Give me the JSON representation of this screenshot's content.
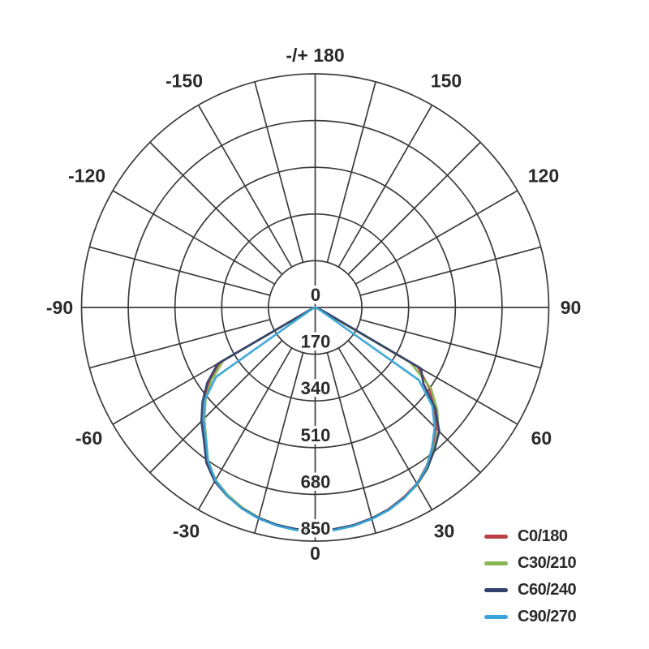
{
  "chart_data": {
    "type": "polar_line",
    "description": "Luminous intensity distribution curves (polar diagram), beam pointing downward, 0 deg at bottom",
    "angle_unit": "deg",
    "angle_ticks": [
      {
        "label": "-/+ 180",
        "deg": 180
      },
      {
        "label": "-150",
        "deg": -150
      },
      {
        "label": "150",
        "deg": 150
      },
      {
        "label": "-120",
        "deg": -120
      },
      {
        "label": "120",
        "deg": 120
      },
      {
        "label": "-90",
        "deg": -90
      },
      {
        "label": "90",
        "deg": 90
      },
      {
        "label": "-60",
        "deg": -60
      },
      {
        "label": "60",
        "deg": 60
      },
      {
        "label": "-30",
        "deg": -30
      },
      {
        "label": "30",
        "deg": 30
      },
      {
        "label": "0",
        "deg": 0
      }
    ],
    "spoke_step_deg": 15,
    "radial_ticks": [
      0,
      170,
      340,
      510,
      680,
      850
    ],
    "radial_max": 850,
    "grid_color": "#3b3b3b",
    "text_color": "#2a2a2a",
    "gamma_deg": [
      -90,
      -85,
      -80,
      -75,
      -70,
      -65,
      -60,
      -55,
      -50,
      -45,
      -40,
      -35,
      -30,
      -25,
      -20,
      -15,
      -10,
      -5,
      0,
      5,
      10,
      15,
      20,
      25,
      30,
      35,
      40,
      45,
      50,
      55,
      60,
      65,
      70,
      75,
      80,
      85,
      90
    ],
    "series": [
      {
        "name": "C0/180",
        "color": "#bb3e42",
        "values": [
          0,
          0,
          0,
          5,
          10,
          15,
          400,
          470,
          525,
          575,
          625,
          685,
          728,
          755,
          777,
          793,
          804,
          811,
          814,
          811,
          805,
          795,
          781,
          762,
          740,
          706,
          665,
          622,
          565,
          505,
          430,
          30,
          12,
          5,
          0,
          0,
          0
        ]
      },
      {
        "name": "C30/210",
        "color": "#86b754",
        "values": [
          0,
          0,
          0,
          4,
          8,
          12,
          385,
          460,
          520,
          570,
          618,
          680,
          725,
          753,
          775,
          792,
          803,
          810,
          812,
          810,
          804,
          796,
          783,
          765,
          744,
          714,
          672,
          634,
          580,
          515,
          400,
          22,
          10,
          4,
          0,
          0,
          0
        ]
      },
      {
        "name": "C60/240",
        "color": "#32406d",
        "values": [
          0,
          0,
          0,
          6,
          12,
          20,
          410,
          480,
          535,
          585,
          630,
          690,
          731,
          757,
          778,
          793,
          803,
          809,
          811,
          809,
          804,
          794,
          782,
          764,
          742,
          712,
          676,
          638,
          570,
          480,
          445,
          38,
          15,
          6,
          0,
          0,
          0
        ]
      },
      {
        "name": "C90/270",
        "color": "#3aa5d8",
        "values": [
          0,
          0,
          0,
          5,
          10,
          12,
          25,
          440,
          525,
          575,
          620,
          680,
          726,
          756,
          779,
          795,
          806,
          813,
          816,
          813,
          807,
          797,
          784,
          766,
          741,
          708,
          662,
          615,
          556,
          460,
          25,
          12,
          8,
          4,
          0,
          0,
          0
        ]
      }
    ],
    "legend_position": "bottom-right"
  }
}
